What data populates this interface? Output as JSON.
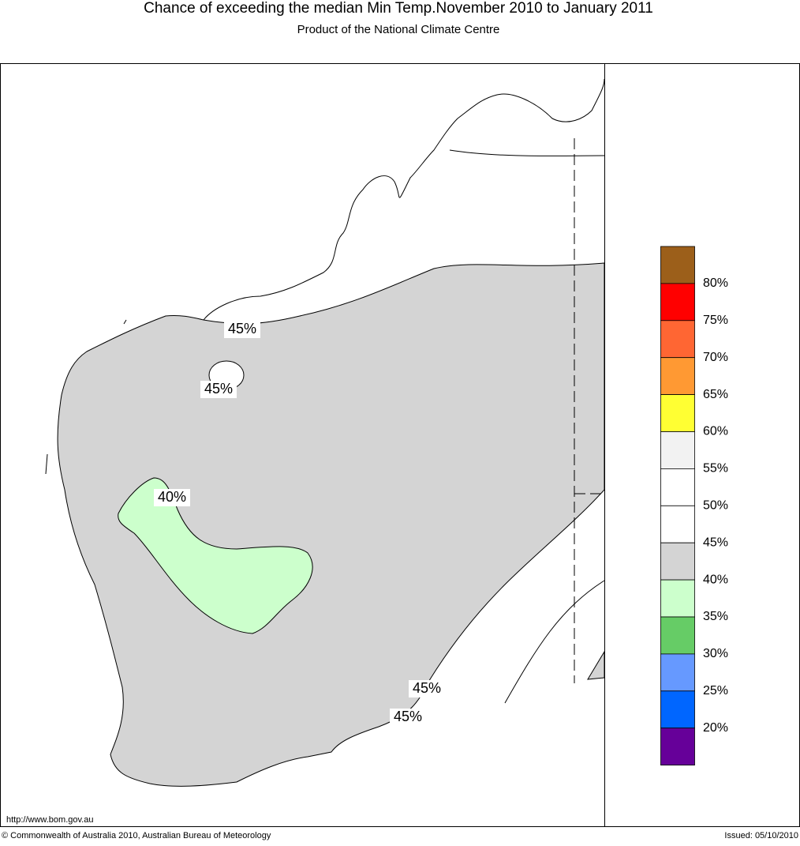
{
  "header": {
    "title": "Chance of exceeding the median Min Temp.November 2010 to January 2011",
    "subtitle": "Product of the National Climate Centre"
  },
  "map": {
    "contour_labels": [
      "45%",
      "45%",
      "40%",
      "45%",
      "45%"
    ]
  },
  "legend": {
    "colors": [
      "#9c5f1a",
      "#ff0000",
      "#ff6633",
      "#ff9933",
      "#ffff33",
      "#f2f2f2",
      "#ffffff",
      "#ffffff",
      "#d4d4d4",
      "#ccffcc",
      "#66cc66",
      "#6699ff",
      "#0066ff",
      "#660099"
    ],
    "labels": [
      "80%",
      "75%",
      "70%",
      "65%",
      "60%",
      "55%",
      "50%",
      "45%",
      "40%",
      "35%",
      "30%",
      "25%",
      "20%"
    ]
  },
  "footer": {
    "url": "http://www.bom.gov.au",
    "copyright": "© Commonwealth of Australia 2010, Australian Bureau of Meteorology",
    "issued": "Issued: 05/10/2010"
  }
}
